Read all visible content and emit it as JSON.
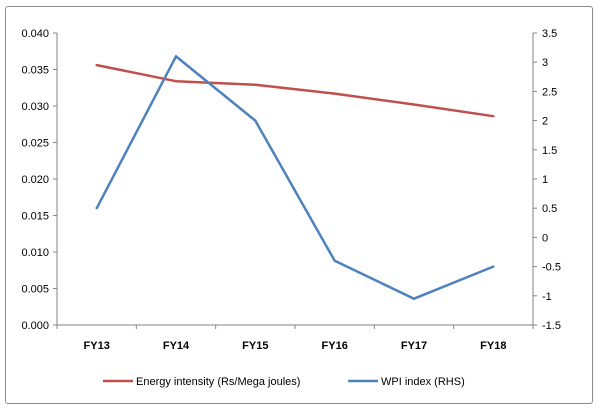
{
  "chart_data": {
    "type": "line",
    "title": "",
    "categories": [
      "FY13",
      "FY14",
      "FY15",
      "FY16",
      "FY17",
      "FY18"
    ],
    "series": [
      {
        "name": "Energy intensity (Rs/Mega joules)",
        "axis": "left",
        "color": "#C0504D",
        "values": [
          0.0356,
          0.0334,
          0.0329,
          0.0317,
          0.0302,
          0.0286
        ]
      },
      {
        "name": "WPI index (RHS)",
        "axis": "right",
        "color": "#4F81BD",
        "values": [
          0.5,
          3.1,
          2.0,
          -0.4,
          -1.05,
          -0.5
        ]
      }
    ],
    "y_left": {
      "min": 0.0,
      "max": 0.04,
      "step": 0.005,
      "tick_labels": [
        "0.000",
        "0.005",
        "0.010",
        "0.015",
        "0.020",
        "0.025",
        "0.030",
        "0.035",
        "0.040"
      ]
    },
    "y_right": {
      "min": -1.5,
      "max": 3.5,
      "step": 0.5,
      "tick_labels": [
        "-1.5",
        "-1",
        "-0.5",
        "0",
        "0.5",
        "1",
        "1.5",
        "2",
        "2.5",
        "3",
        "3.5"
      ]
    },
    "grid": false,
    "legend_position": "bottom"
  }
}
